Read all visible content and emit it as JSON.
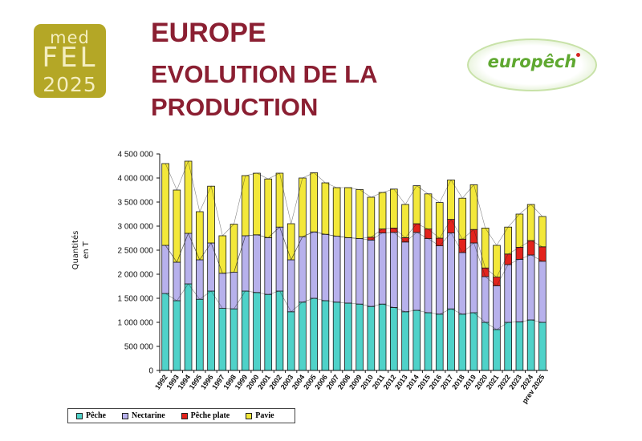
{
  "header": {
    "title_line1": "EUROPE",
    "title_line2": "EVOLUTION DE LA",
    "title_line3": "PRODUCTION"
  },
  "logos": {
    "medfel_line1": "med",
    "medfel_line2": "FEL",
    "medfel_line3": "2025",
    "europech": "europêch"
  },
  "colors": {
    "title": "#8b1f32",
    "peche": "#4fd2c9",
    "nectarine": "#b7b1ec",
    "peche_plate": "#e3231c",
    "pavie": "#f3e83a"
  },
  "chart_data": {
    "type": "bar",
    "stacked": true,
    "ylabel": "Quantités en T",
    "ylabel_line1": "Quantités",
    "ylabel_line2": "en T",
    "ylim": [
      0,
      4500000
    ],
    "yticks": [
      "0",
      "500 000",
      "1 000 000",
      "1 500 000",
      "2 000 000",
      "2 500 000",
      "3 000 000",
      "3 500 000",
      "4 000 000",
      "4 500 000"
    ],
    "grid": false,
    "legend_position": "bottom-left",
    "categories": [
      "1992",
      "1993",
      "1994",
      "1995",
      "1996",
      "1997",
      "1998",
      "1999",
      "2000",
      "2001",
      "2002",
      "2003",
      "2004",
      "2005",
      "2006",
      "2007",
      "2008",
      "2009",
      "2010",
      "2011",
      "2012",
      "2013",
      "2014",
      "2015",
      "2016",
      "2017",
      "2018",
      "2019",
      "2020",
      "2021",
      "2022",
      "2023",
      "2024",
      "prev 2025"
    ],
    "series": [
      {
        "name": "Pêche",
        "color": "#4fd2c9",
        "values": [
          1600000,
          1450000,
          1800000,
          1480000,
          1650000,
          1290000,
          1280000,
          1650000,
          1620000,
          1580000,
          1650000,
          1220000,
          1420000,
          1500000,
          1450000,
          1420000,
          1400000,
          1380000,
          1330000,
          1380000,
          1310000,
          1220000,
          1250000,
          1200000,
          1170000,
          1280000,
          1170000,
          1200000,
          1000000,
          850000,
          1000000,
          1010000,
          1050000,
          1000000
        ]
      },
      {
        "name": "Nectarine",
        "color": "#b7b1ec",
        "values": [
          1000000,
          800000,
          1050000,
          820000,
          1000000,
          730000,
          760000,
          1150000,
          1200000,
          1180000,
          1330000,
          1080000,
          1360000,
          1380000,
          1380000,
          1370000,
          1360000,
          1360000,
          1380000,
          1480000,
          1560000,
          1450000,
          1620000,
          1540000,
          1420000,
          1580000,
          1280000,
          1450000,
          950000,
          910000,
          1200000,
          1300000,
          1350000,
          1270000
        ]
      },
      {
        "name": "Pêche plate",
        "color": "#e3231c",
        "values": [
          0,
          0,
          0,
          0,
          0,
          0,
          0,
          0,
          0,
          0,
          0,
          0,
          0,
          0,
          0,
          0,
          0,
          0,
          60000,
          80000,
          90000,
          90000,
          180000,
          200000,
          160000,
          280000,
          280000,
          280000,
          180000,
          180000,
          220000,
          250000,
          300000,
          300000
        ]
      },
      {
        "name": "Pavie",
        "color": "#f3e83a",
        "values": [
          1700000,
          1500000,
          1500000,
          1000000,
          1180000,
          780000,
          1000000,
          1250000,
          1280000,
          1220000,
          1120000,
          750000,
          1220000,
          1230000,
          1070000,
          1010000,
          1040000,
          1020000,
          830000,
          760000,
          810000,
          690000,
          790000,
          730000,
          740000,
          820000,
          850000,
          930000,
          830000,
          660000,
          560000,
          690000,
          750000,
          630000
        ]
      }
    ]
  }
}
